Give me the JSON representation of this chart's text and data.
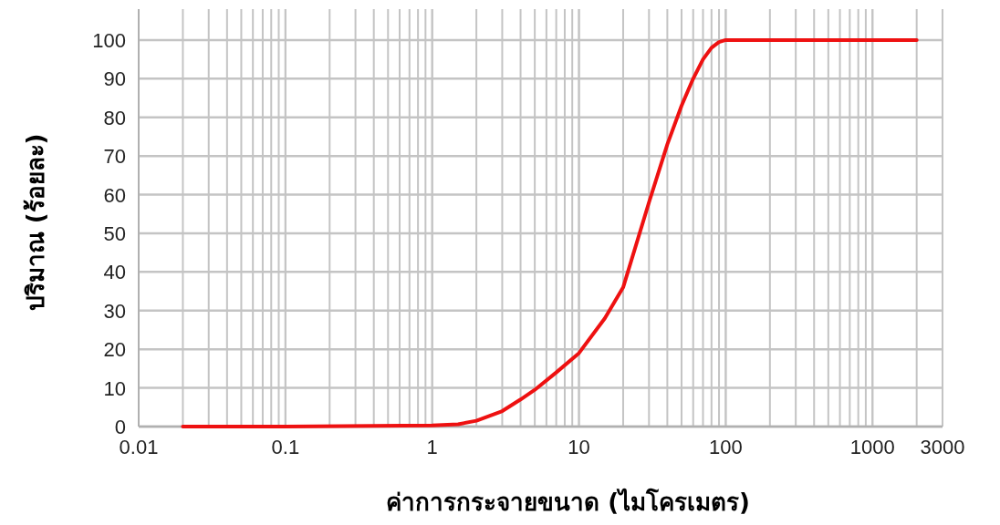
{
  "chart_data": {
    "type": "line",
    "xlabel": "ค่าการกระจายขนาด (ไมโครเมตร)",
    "ylabel": "ปริมาณ (ร้อยละ)",
    "log": "x",
    "x": [
      0.02,
      0.1,
      1,
      1.5,
      2,
      3,
      4,
      5,
      7,
      10,
      15,
      20,
      30,
      40,
      50,
      60,
      70,
      80,
      90,
      100,
      1000,
      2000
    ],
    "series": [
      {
        "color": "#ee1111",
        "values": [
          0,
          0,
          0.3,
          0.6,
          1.5,
          4,
          7,
          9.5,
          14,
          19,
          28,
          36,
          58,
          73,
          83,
          90,
          95,
          98,
          99.5,
          100,
          100,
          100
        ]
      }
    ],
    "xlim": [
      0.01,
      3000
    ],
    "ylim": [
      0,
      108
    ],
    "xticks": [
      0.01,
      0.1,
      1,
      10,
      100,
      1000,
      3000
    ],
    "yticks": [
      0,
      10,
      20,
      30,
      40,
      50,
      60,
      70,
      80,
      90,
      100
    ],
    "grid": true,
    "line_style": "solid"
  }
}
